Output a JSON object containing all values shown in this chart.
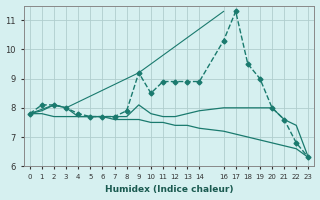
{
  "xlabel": "Humidex (Indice chaleur)",
  "ylabel": "",
  "xlim": [
    -0.5,
    23.5
  ],
  "ylim": [
    6.0,
    11.5
  ],
  "bg_color": "#d6f0f0",
  "grid_color": "#b0cece",
  "line_color": "#1a7a6e",
  "xticks": [
    0,
    1,
    2,
    3,
    4,
    5,
    6,
    7,
    8,
    9,
    10,
    11,
    12,
    13,
    14,
    16,
    17,
    18,
    19,
    20,
    21,
    22,
    23
  ],
  "xtick_labels": [
    "0",
    "1",
    "2",
    "3",
    "4",
    "5",
    "6",
    "7",
    "8",
    "9",
    "10",
    "11",
    "12",
    "13",
    "14",
    "16",
    "17",
    "18",
    "19",
    "20",
    "21",
    "22",
    "23"
  ],
  "yticks": [
    6,
    7,
    8,
    9,
    10,
    11
  ],
  "curves": [
    {
      "x": [
        0,
        1,
        2,
        3,
        4,
        5,
        6,
        7,
        8,
        9,
        10,
        11,
        12,
        13,
        14,
        16,
        17,
        18,
        19,
        20,
        21,
        22,
        23
      ],
      "y": [
        7.8,
        8.1,
        8.1,
        8.0,
        7.8,
        7.7,
        7.7,
        7.7,
        7.9,
        9.2,
        8.5,
        8.9,
        8.9,
        8.9,
        8.9,
        10.3,
        11.3,
        9.5,
        9.0,
        8.0,
        7.6,
        6.8,
        6.3
      ],
      "marker": "D",
      "marker_size": 2.5,
      "linestyle": "--",
      "linewidth": 1.0
    },
    {
      "x": [
        0,
        1,
        2,
        3,
        4,
        5,
        6,
        7,
        8,
        9,
        10,
        11,
        12,
        13,
        14,
        16,
        17,
        18,
        19,
        20,
        21,
        22,
        23
      ],
      "y": [
        7.8,
        7.9,
        8.1,
        8.0,
        7.7,
        7.7,
        7.7,
        7.7,
        7.7,
        8.1,
        7.8,
        7.7,
        7.7,
        7.8,
        7.9,
        8.0,
        8.0,
        8.0,
        8.0,
        8.0,
        7.6,
        7.4,
        6.3
      ],
      "marker": null,
      "marker_size": 0,
      "linestyle": "-",
      "linewidth": 0.9
    },
    {
      "x": [
        0,
        1,
        2,
        3,
        4,
        5,
        6,
        7,
        8,
        9,
        10,
        11,
        12,
        13,
        14,
        16,
        17,
        18,
        19,
        20,
        21,
        22,
        23
      ],
      "y": [
        7.8,
        7.8,
        7.7,
        7.7,
        7.7,
        7.7,
        7.7,
        7.6,
        7.6,
        7.6,
        7.5,
        7.5,
        7.4,
        7.4,
        7.3,
        7.2,
        7.1,
        7.0,
        6.9,
        6.8,
        6.7,
        6.6,
        6.3
      ],
      "marker": null,
      "marker_size": 0,
      "linestyle": "-",
      "linewidth": 0.9
    },
    {
      "x": [
        0,
        2,
        3,
        9,
        16
      ],
      "y": [
        7.8,
        8.1,
        8.0,
        9.2,
        11.3
      ],
      "marker": null,
      "marker_size": 0,
      "linestyle": "-",
      "linewidth": 0.8
    }
  ]
}
